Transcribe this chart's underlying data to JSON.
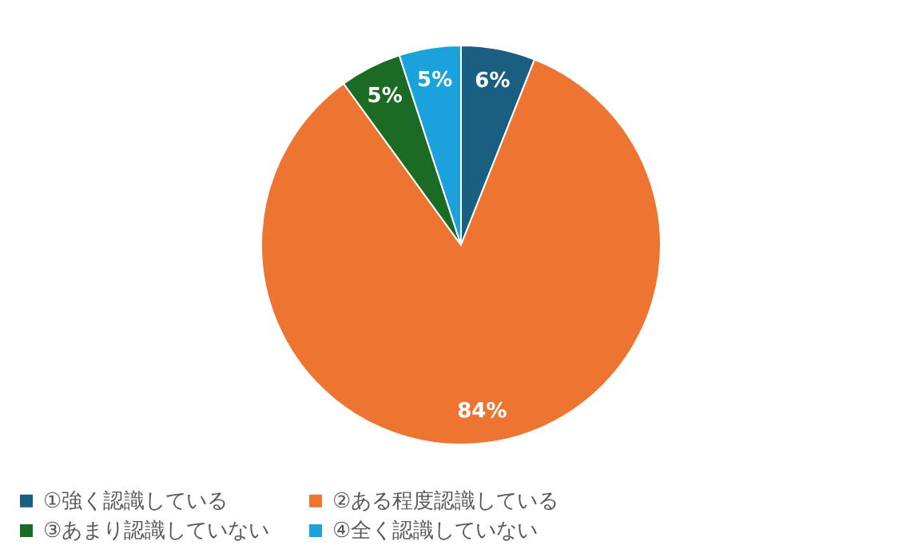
{
  "chart_data": {
    "type": "pie",
    "categories": [
      "①強く認識している",
      "②ある程度認識している",
      "③あまり認識していない",
      "④全く認識していない"
    ],
    "values": [
      6,
      84,
      5,
      5
    ],
    "colors": [
      "#1a5e82",
      "#ed7431",
      "#1c6b25",
      "#1ba1dc"
    ],
    "value_labels": [
      "6%",
      "84%",
      "5%",
      "5%"
    ],
    "legend": "bottom"
  }
}
